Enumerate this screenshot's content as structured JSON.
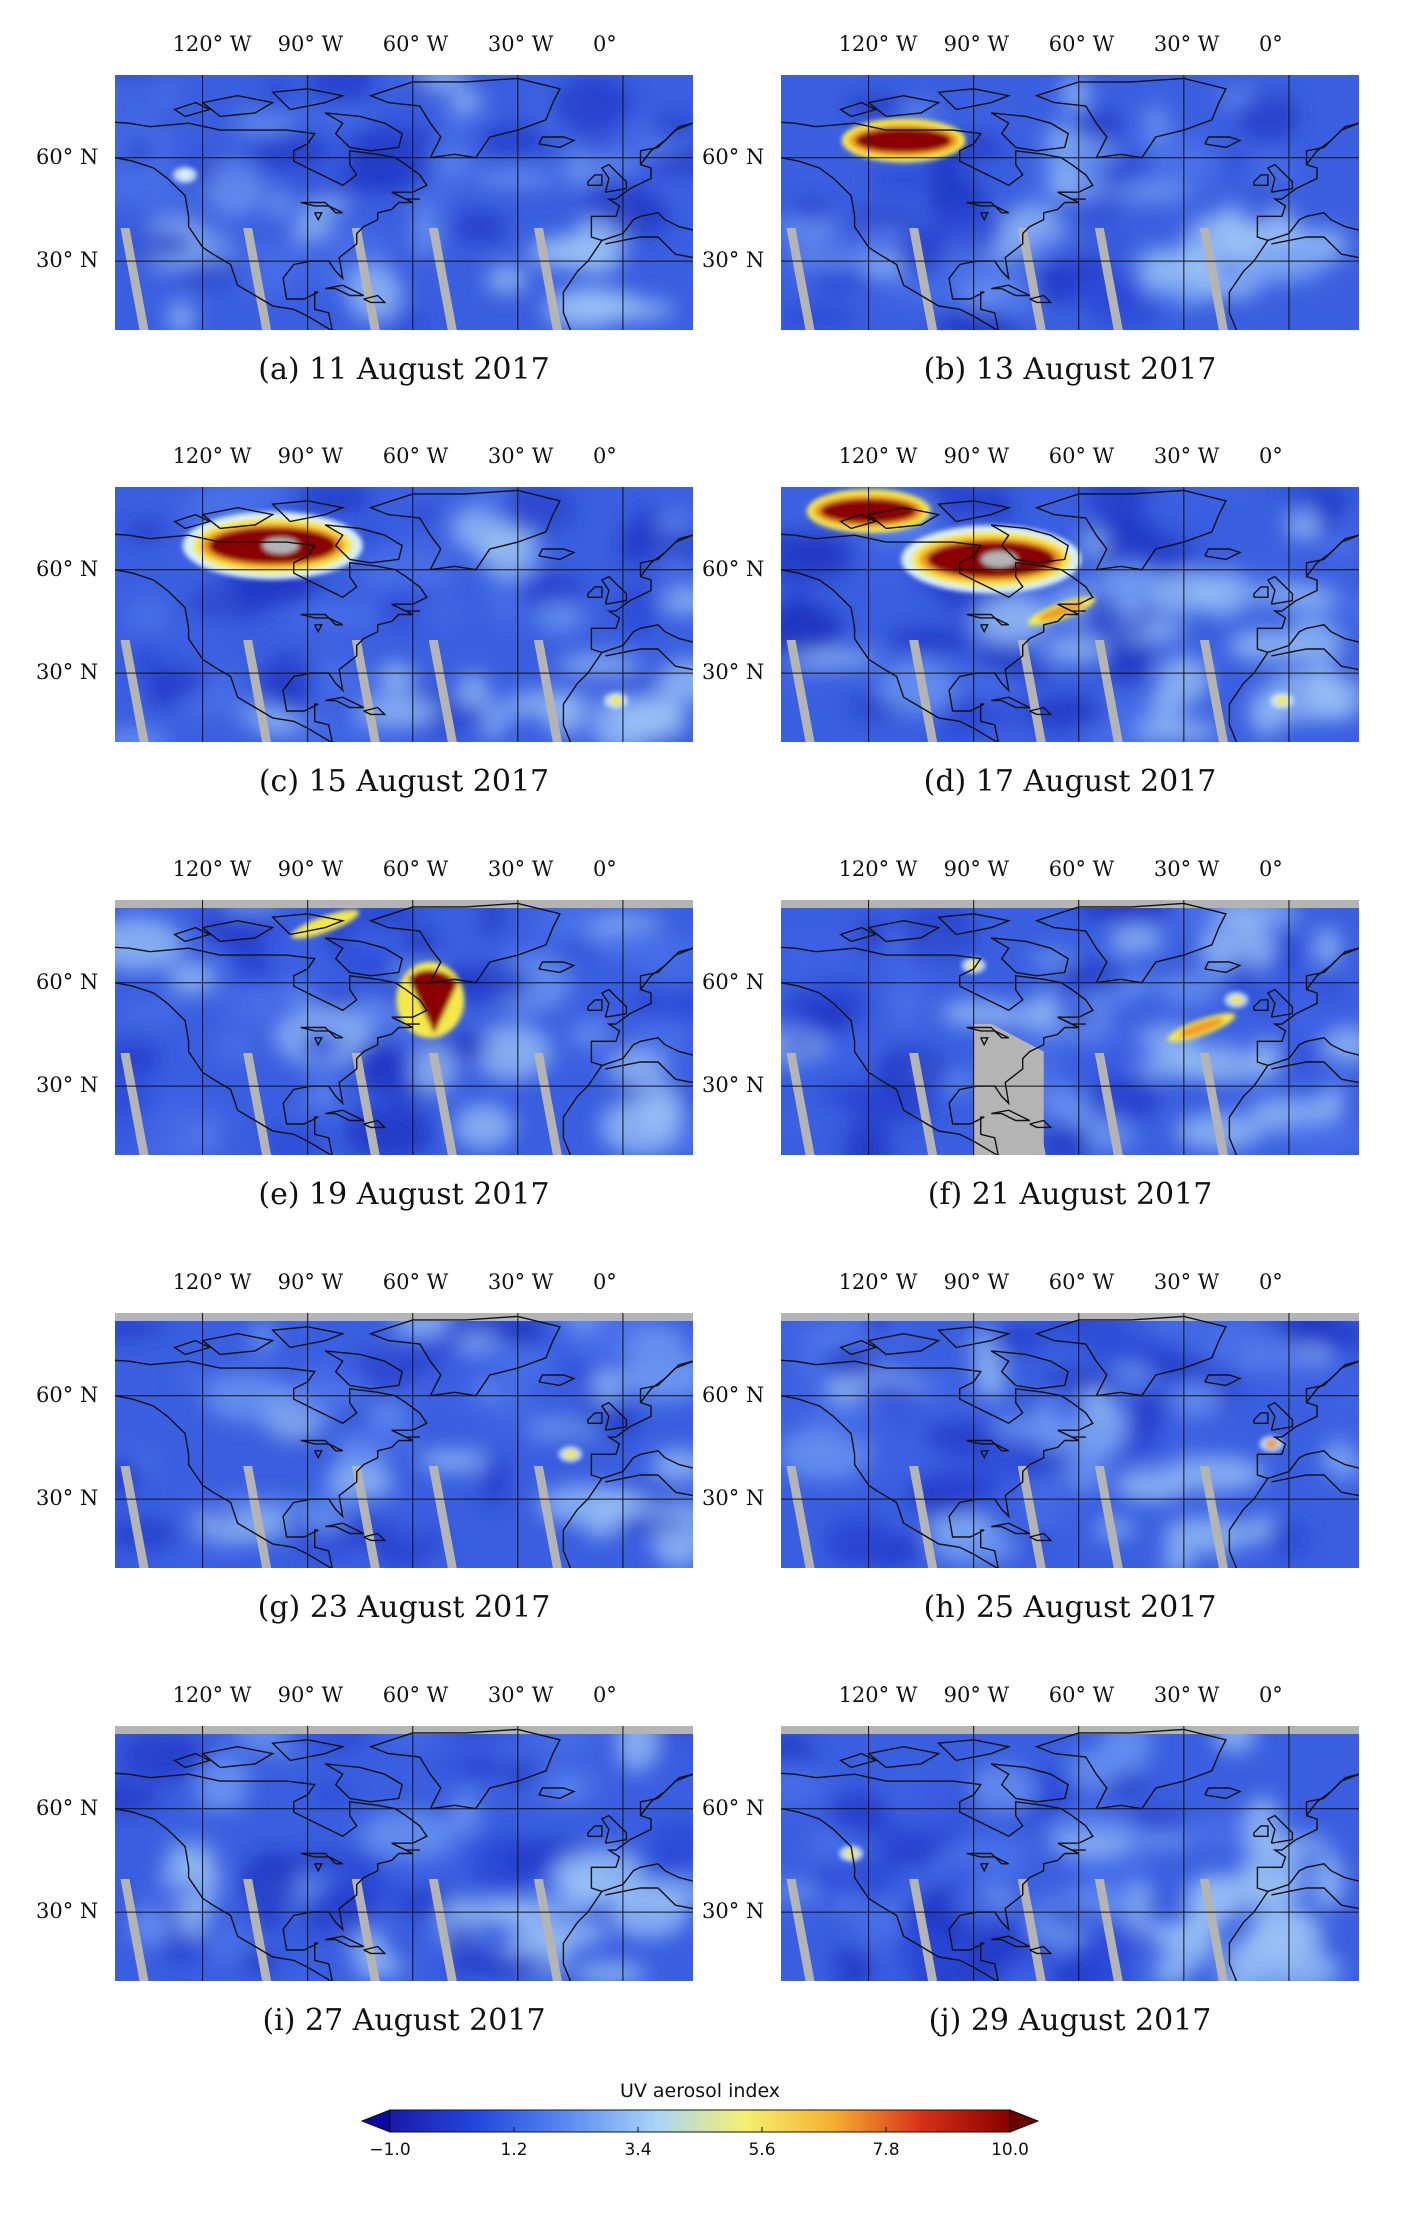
{
  "figure": {
    "panels": [
      {
        "id": "a",
        "caption": "(a) 11 August 2017",
        "plumes": [
          {
            "shape": "dot",
            "lon": -125,
            "lat": 55,
            "r": 1,
            "level": "light"
          }
        ]
      },
      {
        "id": "b",
        "caption": "(b) 13 August 2017",
        "plumes": [
          {
            "shape": "smoke",
            "lon": -110,
            "lat": 65,
            "level": "red"
          }
        ]
      },
      {
        "id": "c",
        "caption": "(c) 15 August 2017",
        "plumes": [
          {
            "shape": "smoke-large",
            "lon": -100,
            "lat": 67,
            "level": "red"
          },
          {
            "shape": "dot",
            "lon": -2,
            "lat": 22,
            "level": "yellow"
          }
        ]
      },
      {
        "id": "d",
        "caption": "(d) 17 August 2017",
        "plumes": [
          {
            "shape": "smoke",
            "lon": -120,
            "lat": 77,
            "level": "red"
          },
          {
            "shape": "smoke-large",
            "lon": -85,
            "lat": 63,
            "level": "red"
          },
          {
            "shape": "streak",
            "lon": -65,
            "lat": 48,
            "level": "orange"
          },
          {
            "shape": "dot",
            "lon": -2,
            "lat": 22,
            "level": "yellow"
          }
        ]
      },
      {
        "id": "e",
        "caption": "(e) 19 August 2017",
        "plumes": [
          {
            "shape": "streak",
            "lon": -85,
            "lat": 77,
            "level": "yellow"
          },
          {
            "shape": "heart",
            "lon": -55,
            "lat": 55,
            "level": "red"
          }
        ]
      },
      {
        "id": "f",
        "caption": "(f) 21 August 2017",
        "plumes": [
          {
            "shape": "dot",
            "lon": -90,
            "lat": 65,
            "level": "yellow"
          },
          {
            "shape": "streak",
            "lon": -25,
            "lat": 47,
            "level": "orange"
          },
          {
            "shape": "dot",
            "lon": -15,
            "lat": 55,
            "level": "yellow"
          }
        ]
      },
      {
        "id": "g",
        "caption": "(g) 23 August 2017",
        "plumes": [
          {
            "shape": "dot",
            "lon": -15,
            "lat": 43,
            "level": "yellow"
          }
        ]
      },
      {
        "id": "h",
        "caption": "(h) 25 August 2017",
        "plumes": [
          {
            "shape": "dot",
            "lon": -5,
            "lat": 46,
            "level": "orange"
          }
        ]
      },
      {
        "id": "i",
        "caption": "(i) 27 August 2017",
        "plumes": []
      },
      {
        "id": "j",
        "caption": "(j) 29 August 2017",
        "plumes": [
          {
            "shape": "dot",
            "lon": -125,
            "lat": 47,
            "level": "yellow"
          }
        ]
      }
    ],
    "lon_labels": [
      "120° W",
      "90° W",
      "60° W",
      "30° W",
      "0°"
    ],
    "lon_values": [
      -120,
      -90,
      -60,
      -30,
      0
    ],
    "lat_labels": [
      "60° N",
      "30° N"
    ],
    "lat_values": [
      60,
      30
    ],
    "map_extent": {
      "lon_min": -145,
      "lon_max": 20,
      "lat_min": 10,
      "lat_max": 84
    }
  },
  "colorbar": {
    "title": "UV aerosol index",
    "ticks": [
      "−1.0",
      "1.2",
      "3.4",
      "5.6",
      "7.8",
      "10.0"
    ],
    "tick_values": [
      -1.0,
      1.2,
      3.4,
      5.6,
      7.8,
      10.0
    ],
    "range": [
      -1.0,
      10.0
    ],
    "colors": [
      "#1a1aa6",
      "#2448e0",
      "#5a8af2",
      "#a8d4f8",
      "#f5f070",
      "#f5b030",
      "#d83018",
      "#8a0000"
    ]
  },
  "colors": {
    "ocean_base": "#3a5fe0",
    "land_base": "#2e4fd8",
    "missing": "#b4b4b4",
    "light": "#d8f0fa",
    "yellow": "#f4e84a",
    "orange": "#f29a24",
    "red": "#8b0000"
  }
}
